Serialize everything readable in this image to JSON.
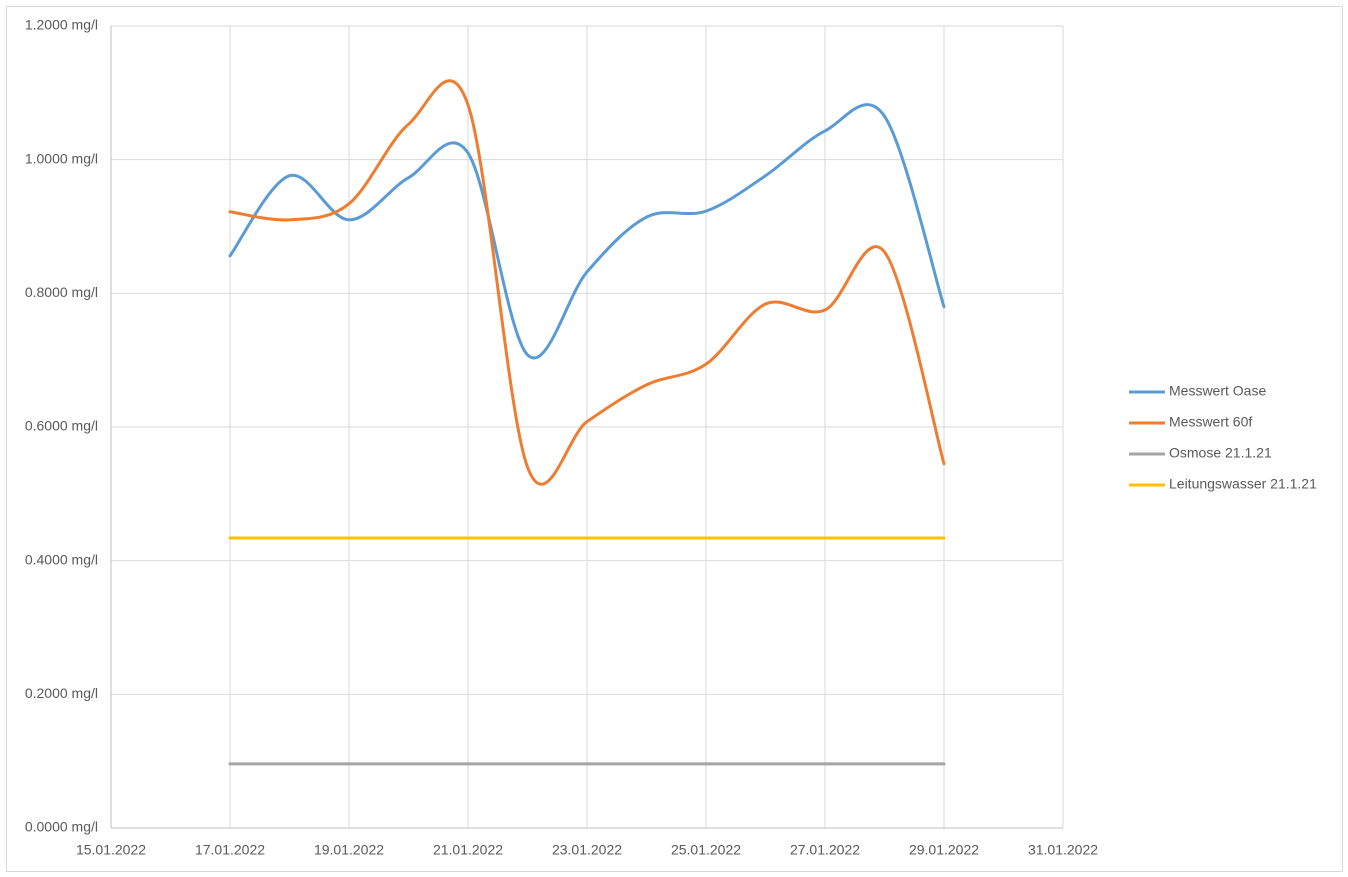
{
  "chart_data": {
    "type": "line",
    "smooth": true,
    "grid": true,
    "legend": "right",
    "x": [
      "17.01.2022",
      "18.01.2022",
      "19.01.2022",
      "20.01.2022",
      "21.01.2022",
      "22.01.2022",
      "23.01.2022",
      "24.01.2022",
      "25.01.2022",
      "26.01.2022",
      "27.01.2022",
      "28.01.2022",
      "29.01.2022"
    ],
    "xlim": [
      "15.01.2022",
      "31.01.2022"
    ],
    "xticks": [
      "15.01.2022",
      "17.01.2022",
      "19.01.2022",
      "21.01.2022",
      "23.01.2022",
      "25.01.2022",
      "27.01.2022",
      "29.01.2022",
      "31.01.2022"
    ],
    "ylim": [
      0,
      1.2
    ],
    "yticks": [
      {
        "value": 0,
        "label": "0.0000 mg/l"
      },
      {
        "value": 0.2,
        "label": "0.2000 mg/l"
      },
      {
        "value": 0.4,
        "label": "0.4000 mg/l"
      },
      {
        "value": 0.6,
        "label": "0.6000 mg/l"
      },
      {
        "value": 0.8,
        "label": "0.8000 mg/l"
      },
      {
        "value": 1.0,
        "label": "1.0000 mg/l"
      },
      {
        "value": 1.2,
        "label": "1.2000 mg/l"
      }
    ],
    "series": [
      {
        "name": "Messwert Oase",
        "color": "#5b9bd5",
        "values": [
          0.856,
          0.976,
          0.91,
          0.973,
          1.01,
          0.708,
          0.832,
          0.914,
          0.923,
          0.976,
          1.043,
          1.065,
          0.78
        ]
      },
      {
        "name": "Messwert 60f",
        "color": "#ed7d31",
        "values": [
          0.922,
          0.91,
          0.934,
          1.053,
          1.082,
          0.54,
          0.608,
          0.663,
          0.694,
          0.784,
          0.775,
          0.862,
          0.545
        ]
      },
      {
        "name": "Osmose 21.1.21",
        "color": "#a5a5a5",
        "values": [
          0.096,
          0.096,
          0.096,
          0.096,
          0.096,
          0.096,
          0.096,
          0.096,
          0.096,
          0.096,
          0.096,
          0.096,
          0.096
        ]
      },
      {
        "name": "Leitungswasser 21.1.21",
        "color": "#ffc000",
        "values": [
          0.434,
          0.434,
          0.434,
          0.434,
          0.434,
          0.434,
          0.434,
          0.434,
          0.434,
          0.434,
          0.434,
          0.434,
          0.434
        ]
      }
    ]
  }
}
